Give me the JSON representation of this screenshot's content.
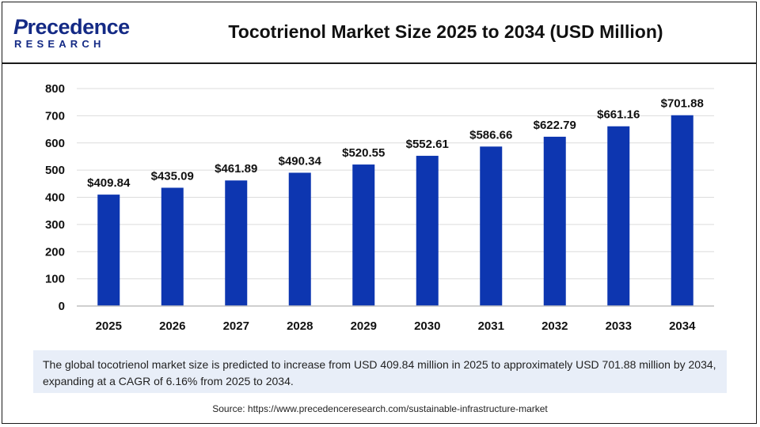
{
  "header": {
    "logo_top": "recedence",
    "logo_top_initial": "P",
    "logo_bottom": "RESEARCH",
    "title": "Tocotrienol Market Size 2025 to 2034 (USD Million)"
  },
  "chart_data": {
    "type": "bar",
    "title": "Tocotrienol Market Size 2025 to 2034 (USD Million)",
    "categories": [
      "2025",
      "2026",
      "2027",
      "2028",
      "2029",
      "2030",
      "2031",
      "2032",
      "2033",
      "2034"
    ],
    "values": [
      409.84,
      435.09,
      461.89,
      490.34,
      520.55,
      552.61,
      586.66,
      622.79,
      661.16,
      701.88
    ],
    "data_labels": [
      "$409.84",
      "$435.09",
      "$461.89",
      "$490.34",
      "$520.55",
      "$552.61",
      "$586.66",
      "$622.79",
      "$661.16",
      "$701.88"
    ],
    "yticks": [
      0,
      100,
      200,
      300,
      400,
      500,
      600,
      700,
      800
    ],
    "ylim": [
      0,
      800
    ],
    "xlabel": "",
    "ylabel": "",
    "grid": true,
    "bar_color": "#0d36b0"
  },
  "summary": "The global tocotrienol market size is predicted to increase from USD 409.84 million in 2025 to approximately USD 701.88 million by 2034, expanding at a CAGR of 6.16% from 2025 to 2034.",
  "source": "Source: https://www.precedenceresearch.com/sustainable-infrastructure-market"
}
